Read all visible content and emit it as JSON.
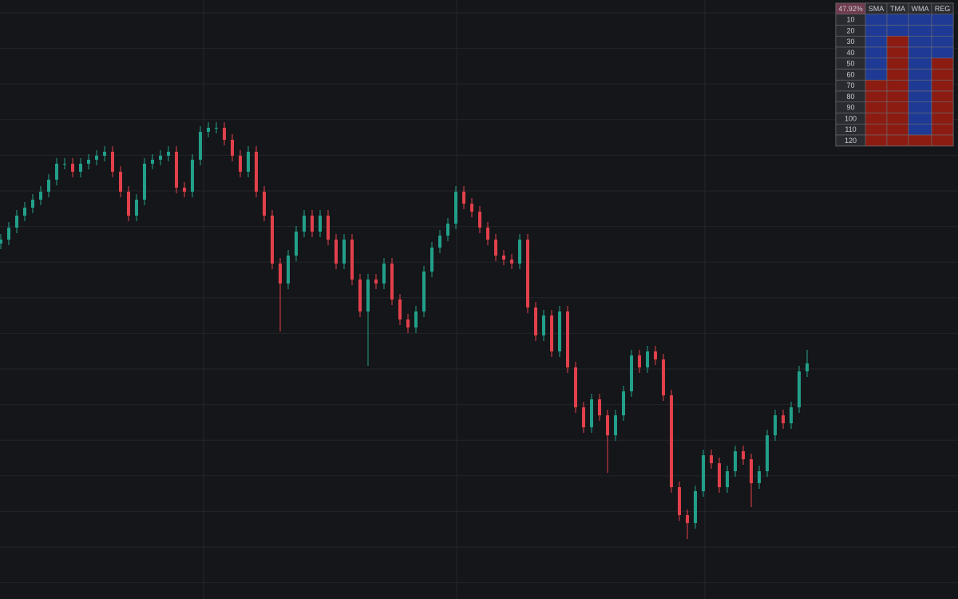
{
  "chart_data": {
    "type": "candlestick",
    "ylim": [
      0,
      750
    ],
    "up_color": "#22a08b",
    "down_color": "#e2404b",
    "open": [
      445,
      450,
      465,
      480,
      490,
      500,
      510,
      525,
      545,
      545,
      535,
      545,
      550,
      555,
      560,
      535,
      510,
      480,
      500,
      545,
      550,
      555,
      560,
      515,
      510,
      550,
      585,
      590,
      590,
      575,
      555,
      535,
      560,
      510,
      480,
      420,
      395,
      430,
      460,
      480,
      460,
      480,
      450,
      420,
      450,
      400,
      360,
      400,
      395,
      420,
      375,
      350,
      340,
      360,
      410,
      440,
      455,
      470,
      510,
      495,
      485,
      465,
      450,
      430,
      425,
      420,
      450,
      365,
      330,
      355,
      310,
      360,
      290,
      240,
      215,
      250,
      230,
      205,
      230,
      260,
      305,
      290,
      310,
      300,
      255,
      140,
      105,
      95,
      135,
      180,
      170,
      140,
      160,
      185,
      175,
      145,
      160,
      205,
      230,
      220,
      240,
      285
    ],
    "high": [
      457,
      472,
      487,
      497,
      507,
      517,
      532,
      552,
      552,
      552,
      552,
      557,
      562,
      567,
      567,
      542,
      517,
      507,
      552,
      557,
      562,
      567,
      567,
      522,
      557,
      592,
      597,
      597,
      597,
      582,
      562,
      567,
      567,
      517,
      487,
      427,
      437,
      467,
      487,
      487,
      487,
      487,
      457,
      457,
      457,
      407,
      407,
      407,
      427,
      427,
      382,
      357,
      367,
      417,
      447,
      462,
      477,
      517,
      517,
      502,
      492,
      472,
      457,
      437,
      432,
      457,
      457,
      372,
      362,
      362,
      367,
      367,
      297,
      247,
      257,
      257,
      237,
      237,
      267,
      312,
      312,
      317,
      317,
      307,
      262,
      147,
      112,
      142,
      187,
      187,
      177,
      167,
      192,
      192,
      182,
      167,
      212,
      237,
      237,
      247,
      292,
      312
    ],
    "low": [
      438,
      443,
      458,
      473,
      483,
      493,
      503,
      518,
      538,
      528,
      528,
      538,
      543,
      548,
      528,
      503,
      473,
      473,
      493,
      538,
      543,
      548,
      508,
      503,
      503,
      543,
      578,
      583,
      568,
      548,
      528,
      528,
      503,
      473,
      413,
      335,
      388,
      423,
      453,
      453,
      453,
      443,
      413,
      413,
      393,
      353,
      292,
      388,
      388,
      368,
      343,
      333,
      333,
      353,
      403,
      433,
      448,
      463,
      488,
      478,
      458,
      443,
      423,
      418,
      413,
      413,
      358,
      323,
      323,
      303,
      303,
      283,
      233,
      208,
      208,
      223,
      158,
      198,
      223,
      253,
      283,
      283,
      293,
      248,
      133,
      98,
      75,
      88,
      128,
      163,
      133,
      133,
      153,
      168,
      115,
      138,
      153,
      198,
      213,
      213,
      233,
      278
    ],
    "close": [
      450,
      465,
      480,
      490,
      500,
      510,
      525,
      545,
      545,
      535,
      545,
      550,
      555,
      560,
      535,
      510,
      480,
      500,
      545,
      550,
      555,
      560,
      515,
      510,
      550,
      585,
      590,
      590,
      575,
      555,
      535,
      560,
      510,
      480,
      420,
      395,
      430,
      460,
      480,
      460,
      480,
      450,
      420,
      450,
      400,
      360,
      400,
      395,
      420,
      375,
      350,
      340,
      360,
      410,
      440,
      455,
      470,
      510,
      495,
      485,
      465,
      450,
      430,
      425,
      420,
      450,
      365,
      330,
      355,
      310,
      360,
      290,
      240,
      215,
      250,
      230,
      205,
      230,
      260,
      305,
      290,
      310,
      300,
      255,
      140,
      105,
      95,
      135,
      180,
      170,
      140,
      160,
      185,
      175,
      145,
      160,
      205,
      230,
      220,
      240,
      285,
      295
    ]
  },
  "table": {
    "corner": "47.92%",
    "columns": [
      "SMA",
      "TMA",
      "WMA",
      "REG"
    ],
    "rows": [
      "10",
      "20",
      "30",
      "40",
      "50",
      "60",
      "70",
      "80",
      "90",
      "100",
      "110",
      "120"
    ],
    "cells": [
      [
        "#1e3a94",
        "#1e3a94",
        "#1e3a94",
        "#1e3a94"
      ],
      [
        "#1e3a94",
        "#1e3a94",
        "#1e3a94",
        "#1e3a94"
      ],
      [
        "#1e3a94",
        "#8c1c12",
        "#1e3a94",
        "#1e3a94"
      ],
      [
        "#1e3a94",
        "#8c1c12",
        "#1e3a94",
        "#1e3a94"
      ],
      [
        "#1e3a94",
        "#8c1c12",
        "#1e3a94",
        "#8c1c12"
      ],
      [
        "#1e3a94",
        "#8c1c12",
        "#1e3a94",
        "#8c1c12"
      ],
      [
        "#8c1c12",
        "#8c1c12",
        "#1e3a94",
        "#8c1c12"
      ],
      [
        "#8c1c12",
        "#8c1c12",
        "#1e3a94",
        "#8c1c12"
      ],
      [
        "#8c1c12",
        "#8c1c12",
        "#1e3a94",
        "#8c1c12"
      ],
      [
        "#8c1c12",
        "#8c1c12",
        "#1e3a94",
        "#8c1c12"
      ],
      [
        "#8c1c12",
        "#8c1c12",
        "#1e3a94",
        "#8c1c12"
      ],
      [
        "#8c1c12",
        "#8c1c12",
        "#8c1c12",
        "#8c1c12"
      ]
    ]
  }
}
